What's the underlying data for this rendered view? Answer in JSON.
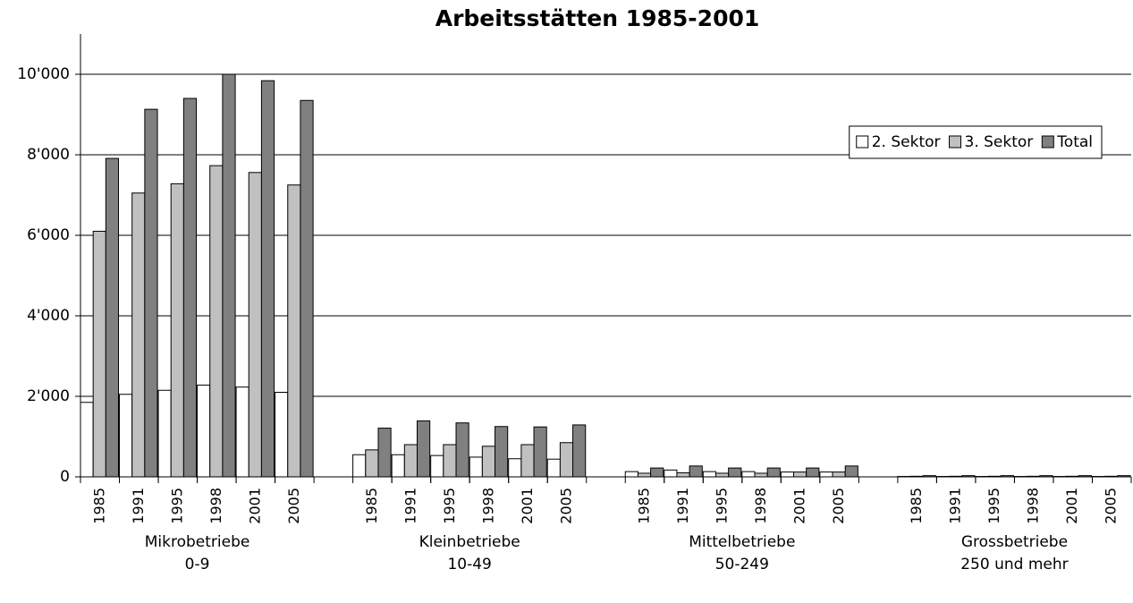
{
  "chart_data": {
    "type": "bar",
    "title": "Arbeitsstätten 1985-2001",
    "categories": [
      "1985",
      "1991",
      "1995",
      "1998",
      "2001",
      "2005",
      "1985",
      "1991",
      "1995",
      "1998",
      "2001",
      "2005",
      "1985",
      "1991",
      "1995",
      "1998",
      "2001",
      "2005",
      "1985",
      "1991",
      "1995",
      "1998",
      "2001",
      "2005"
    ],
    "groups": [
      {
        "name": "Mikrobetriebe",
        "sub": "0-9"
      },
      {
        "name": "Kleinbetriebe",
        "sub": "10-49"
      },
      {
        "name": "Mittelbetriebe",
        "sub": "50-249"
      },
      {
        "name": "Grossbetriebe",
        "sub": "250 und mehr"
      }
    ],
    "series": [
      {
        "name": "2. Sektor",
        "color": "#ffffff",
        "values": [
          1850,
          2050,
          2150,
          2280,
          2230,
          2100,
          550,
          550,
          530,
          490,
          450,
          440,
          130,
          170,
          130,
          130,
          120,
          120,
          10,
          10,
          10,
          10,
          10,
          10
        ]
      },
      {
        "name": "3. Sektor",
        "color": "#c0c0c0",
        "values": [
          6100,
          7050,
          7280,
          7730,
          7560,
          7250,
          670,
          800,
          800,
          760,
          800,
          850,
          90,
          100,
          90,
          90,
          120,
          120,
          15,
          15,
          15,
          15,
          15,
          15
        ]
      },
      {
        "name": "Total",
        "color": "#808080",
        "values": [
          7910,
          9130,
          9400,
          10000,
          9840,
          9350,
          1210,
          1390,
          1340,
          1250,
          1240,
          1290,
          220,
          270,
          220,
          220,
          220,
          270,
          30,
          30,
          30,
          30,
          30,
          30
        ]
      }
    ],
    "ylim": [
      0,
      11000
    ],
    "yticks": [
      0,
      {
        "value": 2000,
        "label": "2'000"
      },
      {
        "value": 4000,
        "label": "4'000"
      },
      {
        "value": 6000,
        "label": "6'000"
      },
      {
        "value": 8000,
        "label": "8'000"
      },
      {
        "value": 10000,
        "label": "10'000"
      }
    ],
    "grid": true,
    "legend": "top-right"
  }
}
